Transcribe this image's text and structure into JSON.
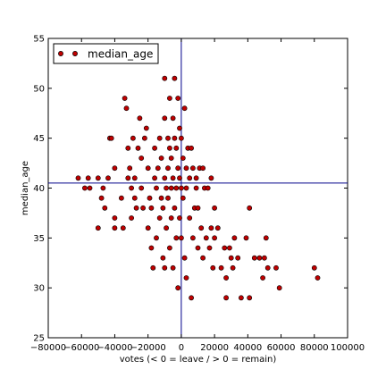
{
  "chart_data": {
    "type": "scatter",
    "xlabel": "votes (< 0 = leave / > 0 = remain)",
    "ylabel": "median_age",
    "xlim": [
      -80000,
      100000
    ],
    "ylim": [
      25,
      55
    ],
    "xticks": [
      -80000,
      -60000,
      -40000,
      -20000,
      0,
      20000,
      40000,
      60000,
      80000,
      100000
    ],
    "xtick_labels": [
      "−80000",
      "−60000",
      "−40000",
      "−20000",
      "0",
      "20000",
      "40000",
      "60000",
      "80000",
      "100000"
    ],
    "yticks": [
      25,
      30,
      35,
      40,
      45,
      50,
      55
    ],
    "ytick_labels": [
      "25",
      "30",
      "35",
      "40",
      "45",
      "50",
      "55"
    ],
    "grid": false,
    "legend": {
      "position": "top-left",
      "entries": [
        "median_age"
      ]
    },
    "reference_lines": {
      "vertical_x": 0,
      "horizontal_y": 40.5
    },
    "colors": {
      "marker_fill": "#c00000",
      "marker_edge": "#000000",
      "reference_line": "#00008b"
    },
    "series": [
      {
        "name": "median_age",
        "points": [
          [
            -62000,
            41
          ],
          [
            -58000,
            40
          ],
          [
            -55000,
            40
          ],
          [
            -56000,
            41
          ],
          [
            -50000,
            41
          ],
          [
            -48000,
            39
          ],
          [
            -50000,
            36
          ],
          [
            -46000,
            38
          ],
          [
            -47000,
            40
          ],
          [
            -44000,
            41
          ],
          [
            -43000,
            45
          ],
          [
            -42000,
            45
          ],
          [
            -40000,
            42
          ],
          [
            -40000,
            37
          ],
          [
            -40000,
            36
          ],
          [
            -36000,
            39
          ],
          [
            -35000,
            36
          ],
          [
            -34000,
            49
          ],
          [
            -33000,
            48
          ],
          [
            -32000,
            41
          ],
          [
            -32000,
            44
          ],
          [
            -31000,
            42
          ],
          [
            -30000,
            40
          ],
          [
            -30000,
            37
          ],
          [
            -29000,
            45
          ],
          [
            -28000,
            41
          ],
          [
            -28000,
            39
          ],
          [
            -27000,
            38
          ],
          [
            -26000,
            44
          ],
          [
            -25000,
            47
          ],
          [
            -24000,
            43
          ],
          [
            -23000,
            38
          ],
          [
            -24000,
            40
          ],
          [
            -22000,
            45
          ],
          [
            -21000,
            46
          ],
          [
            -20000,
            42
          ],
          [
            -20000,
            36
          ],
          [
            -19000,
            39
          ],
          [
            -18000,
            38
          ],
          [
            -18000,
            34
          ],
          [
            -17000,
            32
          ],
          [
            -16000,
            44
          ],
          [
            -16000,
            41
          ],
          [
            -15000,
            40
          ],
          [
            -15000,
            35
          ],
          [
            -14000,
            42
          ],
          [
            -13000,
            45
          ],
          [
            -13000,
            37
          ],
          [
            -12000,
            43
          ],
          [
            -12000,
            39
          ],
          [
            -11000,
            38
          ],
          [
            -11000,
            33
          ],
          [
            -10000,
            51
          ],
          [
            -10000,
            47
          ],
          [
            -10000,
            41
          ],
          [
            -10000,
            32
          ],
          [
            -9000,
            40
          ],
          [
            -9000,
            36
          ],
          [
            -8000,
            45
          ],
          [
            -8000,
            42
          ],
          [
            -8000,
            39
          ],
          [
            -7000,
            49
          ],
          [
            -7000,
            44
          ],
          [
            -7000,
            34
          ],
          [
            -6000,
            43
          ],
          [
            -6000,
            40
          ],
          [
            -6000,
            37
          ],
          [
            -5000,
            47
          ],
          [
            -5000,
            41
          ],
          [
            -5000,
            32
          ],
          [
            -4000,
            51
          ],
          [
            -4000,
            45
          ],
          [
            -4000,
            38
          ],
          [
            -3000,
            44
          ],
          [
            -3000,
            40
          ],
          [
            -3000,
            35
          ],
          [
            -2000,
            49
          ],
          [
            -2000,
            42
          ],
          [
            -2000,
            30
          ],
          [
            -1000,
            46
          ],
          [
            -1000,
            41
          ],
          [
            -1000,
            37
          ],
          [
            0,
            45
          ],
          [
            0,
            40
          ],
          [
            0,
            35
          ],
          [
            1000,
            43
          ],
          [
            1000,
            39
          ],
          [
            2000,
            48
          ],
          [
            2000,
            33
          ],
          [
            3000,
            42
          ],
          [
            3000,
            40
          ],
          [
            3000,
            31
          ],
          [
            4000,
            44
          ],
          [
            5000,
            41
          ],
          [
            5000,
            37
          ],
          [
            6000,
            44
          ],
          [
            6000,
            29
          ],
          [
            7000,
            42
          ],
          [
            7000,
            35
          ],
          [
            8000,
            38
          ],
          [
            9000,
            41
          ],
          [
            9000,
            40
          ],
          [
            10000,
            38
          ],
          [
            10000,
            34
          ],
          [
            11000,
            42
          ],
          [
            12000,
            36
          ],
          [
            13000,
            42
          ],
          [
            13000,
            33
          ],
          [
            14000,
            40
          ],
          [
            15000,
            35
          ],
          [
            16000,
            40
          ],
          [
            17000,
            34
          ],
          [
            18000,
            41
          ],
          [
            18000,
            36
          ],
          [
            19000,
            32
          ],
          [
            20000,
            38
          ],
          [
            20000,
            35
          ],
          [
            22000,
            36
          ],
          [
            24000,
            32
          ],
          [
            26000,
            34
          ],
          [
            27000,
            29
          ],
          [
            27000,
            31
          ],
          [
            29000,
            34
          ],
          [
            30000,
            33
          ],
          [
            31000,
            32
          ],
          [
            32000,
            35
          ],
          [
            34000,
            33
          ],
          [
            36000,
            29
          ],
          [
            39000,
            35
          ],
          [
            41000,
            38
          ],
          [
            41000,
            29
          ],
          [
            44000,
            33
          ],
          [
            47000,
            33
          ],
          [
            49000,
            31
          ],
          [
            50000,
            33
          ],
          [
            51000,
            35
          ],
          [
            52000,
            32
          ],
          [
            57000,
            32
          ],
          [
            59000,
            30
          ],
          [
            80000,
            32
          ],
          [
            82000,
            31
          ]
        ]
      }
    ]
  }
}
